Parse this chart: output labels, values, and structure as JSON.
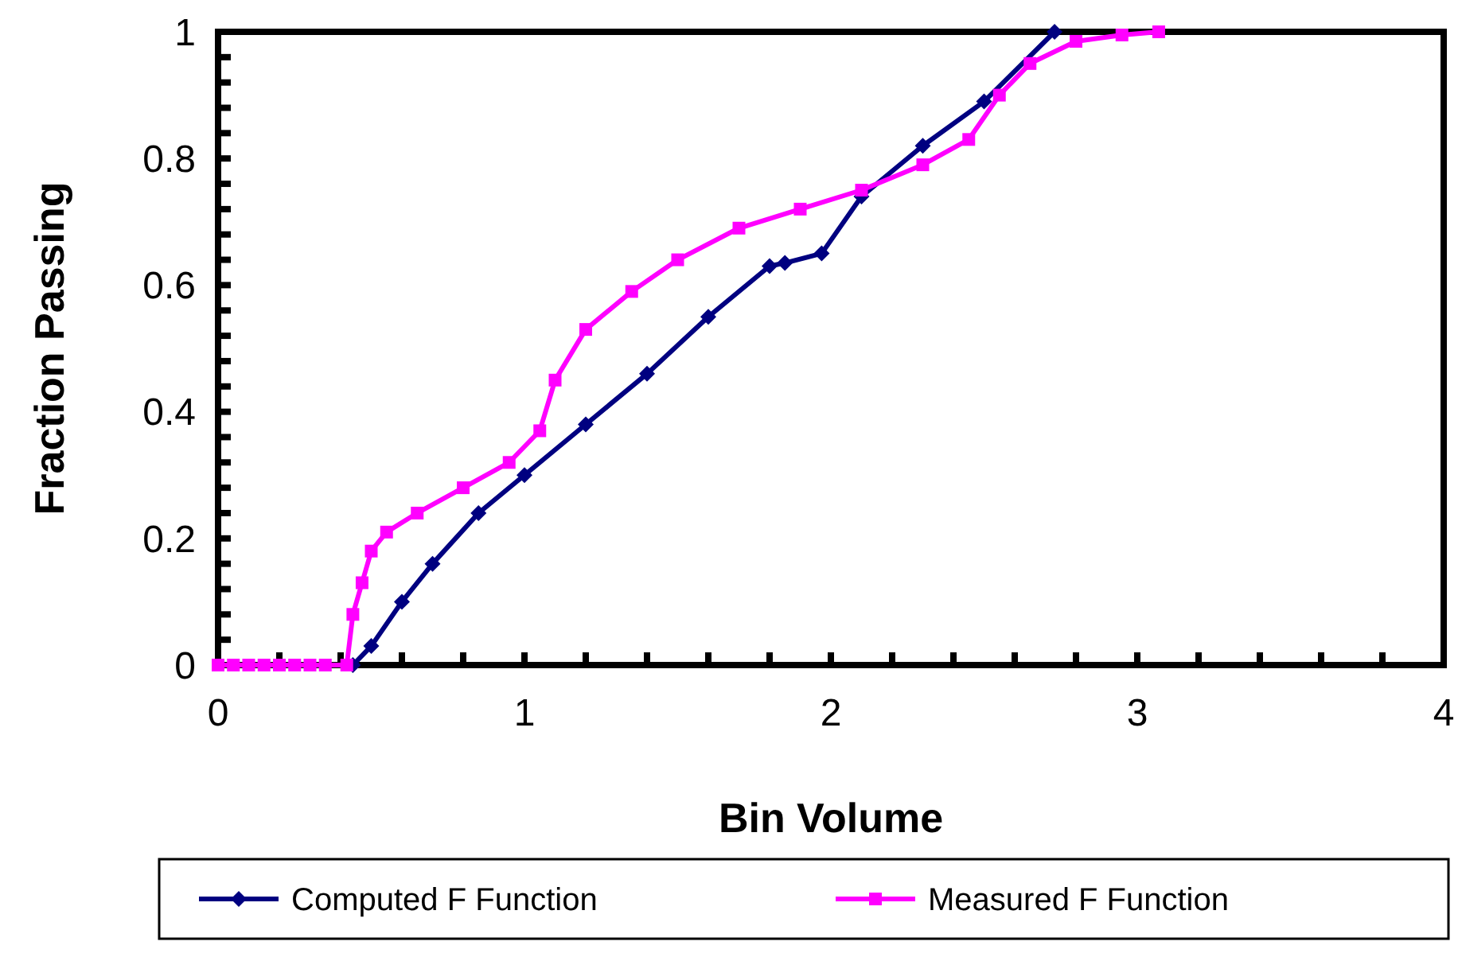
{
  "chart_data": {
    "type": "line",
    "xlabel": "Bin Volume",
    "ylabel": "Fraction Passing",
    "xlim": [
      0,
      4
    ],
    "ylim": [
      0,
      1
    ],
    "xticks": [
      0,
      {
        "value": 0.2,
        "label": null
      },
      {
        "value": 0.4,
        "label": null
      },
      {
        "value": 0.6,
        "label": null
      },
      {
        "value": 0.8,
        "label": null
      },
      1,
      {
        "value": 1.2,
        "label": null
      },
      {
        "value": 1.4,
        "label": null
      },
      {
        "value": 1.6,
        "label": null
      },
      {
        "value": 1.8,
        "label": null
      },
      2,
      {
        "value": 2.2,
        "label": null
      },
      {
        "value": 2.4,
        "label": null
      },
      {
        "value": 2.6,
        "label": null
      },
      {
        "value": 2.8,
        "label": null
      },
      3,
      {
        "value": 3.2,
        "label": null
      },
      {
        "value": 3.4,
        "label": null
      },
      {
        "value": 3.6,
        "label": null
      },
      {
        "value": 3.8,
        "label": null
      },
      4
    ],
    "yticks": [
      0,
      {
        "value": 0.04,
        "label": null
      },
      {
        "value": 0.08,
        "label": null
      },
      {
        "value": 0.12,
        "label": null
      },
      {
        "value": 0.16,
        "label": null
      },
      0.2,
      {
        "value": 0.24,
        "label": null
      },
      {
        "value": 0.28,
        "label": null
      },
      {
        "value": 0.32,
        "label": null
      },
      {
        "value": 0.36,
        "label": null
      },
      0.4,
      {
        "value": 0.44,
        "label": null
      },
      {
        "value": 0.48,
        "label": null
      },
      {
        "value": 0.52,
        "label": null
      },
      {
        "value": 0.56,
        "label": null
      },
      0.6,
      {
        "value": 0.64,
        "label": null
      },
      {
        "value": 0.68,
        "label": null
      },
      {
        "value": 0.72,
        "label": null
      },
      {
        "value": 0.76,
        "label": null
      },
      0.8,
      {
        "value": 0.84,
        "label": null
      },
      {
        "value": 0.88,
        "label": null
      },
      {
        "value": 0.92,
        "label": null
      },
      {
        "value": 0.96,
        "label": null
      },
      1
    ],
    "grid": false,
    "legend": "bottom",
    "series": [
      {
        "name": "Computed F Function",
        "color": "#000080",
        "marker": "diamond",
        "x": [
          0.44,
          0.5,
          0.6,
          0.7,
          0.85,
          1.0,
          1.2,
          1.4,
          1.6,
          1.8,
          1.85,
          1.97,
          2.1,
          2.3,
          2.5,
          2.73
        ],
        "values": [
          0,
          0.03,
          0.1,
          0.16,
          0.24,
          0.3,
          0.38,
          0.46,
          0.55,
          0.63,
          0.635,
          0.65,
          0.74,
          0.82,
          0.89,
          1.0
        ]
      },
      {
        "name": "Measured F Function",
        "color": "#ff00ff",
        "marker": "square",
        "x": [
          0,
          0.05,
          0.1,
          0.15,
          0.2,
          0.25,
          0.3,
          0.35,
          0.42,
          0.44,
          0.47,
          0.5,
          0.55,
          0.65,
          0.8,
          0.95,
          1.05,
          1.1,
          1.2,
          1.35,
          1.5,
          1.7,
          1.9,
          2.1,
          2.3,
          2.45,
          2.55,
          2.65,
          2.8,
          2.95,
          3.07
        ],
        "values": [
          0,
          0,
          0,
          0,
          0,
          0,
          0,
          0,
          0,
          0.08,
          0.13,
          0.18,
          0.21,
          0.24,
          0.28,
          0.32,
          0.37,
          0.45,
          0.53,
          0.59,
          0.64,
          0.69,
          0.72,
          0.75,
          0.79,
          0.83,
          0.9,
          0.95,
          0.985,
          0.995,
          1.0
        ]
      }
    ]
  }
}
